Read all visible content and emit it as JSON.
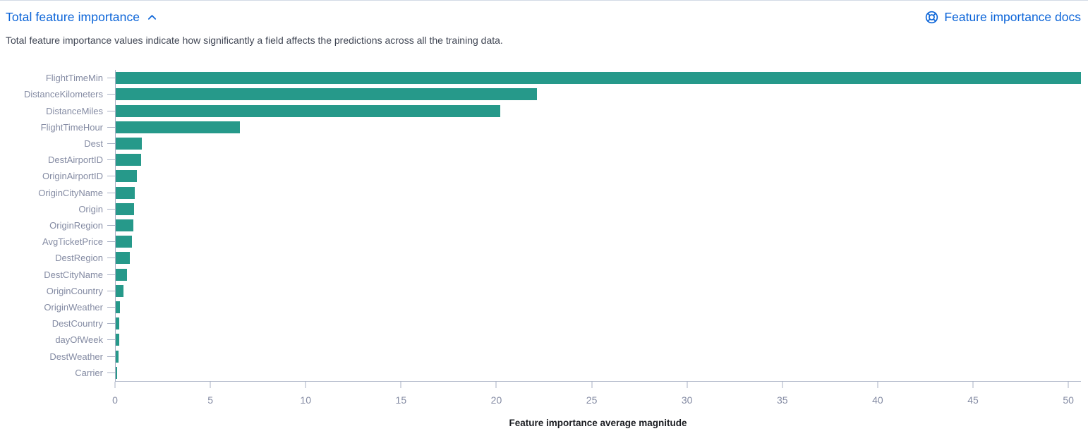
{
  "header": {
    "title": "Total feature importance",
    "docs_link_label": "Feature importance docs",
    "description": "Total feature importance values indicate how significantly a field affects the predictions across all the training data."
  },
  "icons": {
    "collapse": "chevron-up-icon",
    "docs": "lifebuoy-icon"
  },
  "colors": {
    "link": "#0b64d8",
    "bar": "#26998a",
    "axis_label": "#848ba3",
    "axis_line": "#a9b1c4",
    "body_text": "#3f4553",
    "axis_title": "#1a1c21",
    "top_border": "#d3dae6"
  },
  "chart_data": {
    "type": "bar",
    "orientation": "horizontal",
    "title": "",
    "xlabel": "Feature importance average magnitude",
    "ylabel": "",
    "xlim": [
      0,
      50.66
    ],
    "x_ticks": [
      0,
      5,
      10,
      15,
      20,
      25,
      30,
      35,
      40,
      45,
      50
    ],
    "grid": false,
    "legend": false,
    "bar_color": "#26998a",
    "categories": [
      "FlightTimeMin",
      "DistanceKilometers",
      "DistanceMiles",
      "FlightTimeHour",
      "Dest",
      "DestAirportID",
      "OriginAirportID",
      "OriginCityName",
      "Origin",
      "OriginRegion",
      "AvgTicketPrice",
      "DestRegion",
      "DestCityName",
      "OriginCountry",
      "OriginWeather",
      "DestCountry",
      "dayOfWeek",
      "DestWeather",
      "Carrier"
    ],
    "values": [
      50.66,
      22.1,
      20.2,
      6.5,
      1.37,
      1.33,
      1.1,
      1.0,
      0.96,
      0.91,
      0.84,
      0.73,
      0.6,
      0.41,
      0.22,
      0.19,
      0.19,
      0.15,
      0.06
    ]
  }
}
